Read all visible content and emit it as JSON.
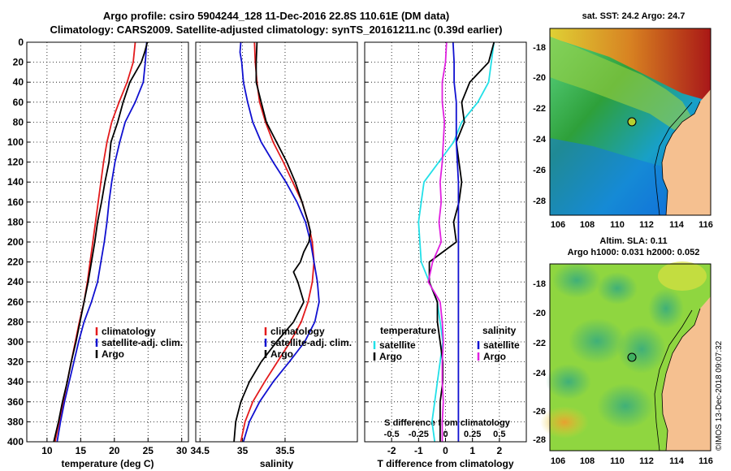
{
  "header": {
    "title_line1": "Argo profile: csiro 5904244_128 11-Dec-2016 22.8S 110.61E (DM data)",
    "title_line2": "Climatology: CARS2009. Satellite-adjusted climatology: synTS_20161211.nc (0.39d earlier)"
  },
  "colors": {
    "red": "#e31a1c",
    "blue": "#1010d0",
    "black": "#000000",
    "cyan": "#22e0e8",
    "magenta": "#e020e0"
  },
  "chart_data": [
    {
      "type": "line",
      "id": "temperature",
      "xlabel": "temperature (deg C)",
      "ylabel": "",
      "xlim": [
        7,
        31
      ],
      "ylim": [
        400,
        0
      ],
      "xticks": [
        10,
        15,
        20,
        25,
        30
      ],
      "yticks": [
        0,
        20,
        40,
        60,
        80,
        100,
        120,
        140,
        160,
        180,
        200,
        220,
        240,
        260,
        280,
        300,
        320,
        340,
        360,
        380,
        400
      ],
      "grid": true,
      "legend": [
        "climatology",
        "satellite-adj. clim.",
        "Argo"
      ],
      "series": [
        {
          "name": "climatology",
          "color": "red",
          "depth": [
            0,
            20,
            40,
            60,
            80,
            100,
            120,
            140,
            160,
            180,
            200,
            220,
            240,
            260,
            280,
            300,
            320,
            340,
            360,
            380,
            400
          ],
          "values": [
            23.1,
            22.8,
            21.9,
            20.7,
            19.6,
            18.9,
            18.4,
            18.0,
            17.6,
            17.2,
            16.8,
            16.4,
            16.0,
            15.5,
            14.8,
            14.2,
            13.6,
            13.0,
            12.4,
            11.8,
            11.2
          ]
        },
        {
          "name": "satellite-adj. clim.",
          "color": "blue",
          "depth": [
            0,
            20,
            40,
            60,
            80,
            100,
            120,
            140,
            160,
            180,
            200,
            220,
            240,
            260,
            280,
            300,
            320,
            340,
            360,
            380,
            400
          ],
          "values": [
            24.8,
            24.6,
            24.3,
            23.1,
            21.6,
            20.8,
            20.1,
            19.6,
            19.2,
            18.9,
            18.5,
            18.0,
            17.5,
            16.6,
            15.5,
            14.7,
            14.0,
            13.3,
            12.6,
            12.0,
            11.5
          ]
        },
        {
          "name": "Argo",
          "color": "black",
          "depth": [
            0,
            10,
            20,
            40,
            60,
            80,
            100,
            120,
            140,
            160,
            180,
            200,
            220,
            240,
            260,
            280,
            300,
            320,
            340,
            360,
            380,
            400
          ],
          "values": [
            24.9,
            24.5,
            24.0,
            22.3,
            21.3,
            20.5,
            19.5,
            19.2,
            18.6,
            18.1,
            17.5,
            17.1,
            16.6,
            16.1,
            15.5,
            14.9,
            14.3,
            13.6,
            13.0,
            12.3,
            11.7,
            11.0
          ]
        }
      ]
    },
    {
      "type": "line",
      "id": "salinity",
      "xlabel": "salinity",
      "ylabel": "",
      "xlim": [
        34.45,
        36.35
      ],
      "ylim": [
        400,
        0
      ],
      "xticks": [
        34.5,
        35,
        35.5
      ],
      "ytick_labels_shown": false,
      "grid": true,
      "legend": [
        "climatology",
        "satellite-adj. clim.",
        "Argo"
      ],
      "series": [
        {
          "name": "climatology",
          "color": "red",
          "depth": [
            0,
            20,
            40,
            60,
            80,
            100,
            120,
            140,
            160,
            180,
            200,
            220,
            240,
            260,
            280,
            300,
            320,
            340,
            360,
            380,
            400
          ],
          "values": [
            35.14,
            35.15,
            35.17,
            35.2,
            35.27,
            35.36,
            35.48,
            35.59,
            35.7,
            35.77,
            35.82,
            35.84,
            35.82,
            35.77,
            35.69,
            35.56,
            35.41,
            35.26,
            35.12,
            35.03,
            34.98
          ]
        },
        {
          "name": "satellite-adj. clim.",
          "color": "blue",
          "depth": [
            0,
            10,
            20,
            40,
            60,
            80,
            100,
            120,
            140,
            160,
            180,
            200,
            220,
            240,
            260,
            280,
            300,
            320,
            340,
            360,
            380,
            400
          ],
          "values": [
            34.98,
            34.97,
            34.99,
            35.01,
            35.06,
            35.12,
            35.22,
            35.36,
            35.51,
            35.64,
            35.74,
            35.8,
            35.84,
            35.88,
            35.9,
            35.85,
            35.73,
            35.55,
            35.36,
            35.2,
            35.08,
            35.01
          ]
        },
        {
          "name": "Argo",
          "color": "black",
          "depth": [
            0,
            20,
            40,
            60,
            80,
            100,
            120,
            140,
            160,
            180,
            190,
            200,
            210,
            220,
            230,
            240,
            260,
            280,
            300,
            320,
            340,
            360,
            380,
            400
          ],
          "values": [
            35.17,
            35.16,
            35.16,
            35.22,
            35.28,
            35.4,
            35.52,
            35.62,
            35.7,
            35.77,
            35.8,
            35.78,
            35.72,
            35.68,
            35.6,
            35.65,
            35.72,
            35.6,
            35.4,
            35.22,
            35.08,
            34.98,
            34.92,
            34.9
          ]
        }
      ]
    },
    {
      "type": "line",
      "id": "difference",
      "xlabel": "T difference from climatology",
      "top_xlabel": "S difference from climatology",
      "ylabel": "",
      "xlim": [
        -3,
        3
      ],
      "top_xlim": [
        -0.75,
        0.75
      ],
      "ylim": [
        400,
        0
      ],
      "xticks": [
        -2,
        -1,
        0,
        1,
        2
      ],
      "top_xticks": [
        -0.5,
        -0.25,
        0,
        0.25,
        0.5
      ],
      "ytick_labels_shown": false,
      "grid": true,
      "legend_left_title": "temperature",
      "legend_right_title": "salinity",
      "legend_left": [
        "satellite",
        "Argo"
      ],
      "legend_right": [
        "satellite",
        "Argo"
      ],
      "series": [
        {
          "name": "temperature satellite",
          "color": "cyan",
          "axis": "T",
          "depth": [
            0,
            20,
            40,
            60,
            80,
            100,
            140,
            180,
            220,
            260,
            300,
            340,
            380,
            400
          ],
          "values": [
            1.8,
            1.7,
            1.6,
            1.2,
            0.6,
            0.3,
            -0.8,
            -1.0,
            -0.9,
            -0.3,
            -0.1,
            -0.3,
            -0.5,
            -0.4
          ]
        },
        {
          "name": "temperature Argo",
          "color": "black",
          "axis": "T",
          "depth": [
            0,
            20,
            40,
            60,
            80,
            100,
            120,
            140,
            160,
            180,
            200,
            220,
            240,
            260,
            280,
            300,
            320,
            340,
            360,
            380,
            400
          ],
          "values": [
            1.8,
            1.6,
            0.9,
            0.6,
            0.7,
            0.4,
            0.5,
            0.6,
            0.5,
            0.3,
            0.4,
            -0.6,
            -0.6,
            -0.3,
            -0.3,
            -0.2,
            -0.1,
            -0.1,
            -0.2,
            -0.2,
            -0.2
          ]
        },
        {
          "name": "salinity satellite",
          "color": "blue",
          "axis": "S",
          "depth": [
            0,
            20,
            40,
            60,
            80,
            100,
            140,
            180,
            220,
            260,
            300,
            340,
            380,
            400
          ],
          "values": [
            0.07,
            0.08,
            0.08,
            0.1,
            0.1,
            0.1,
            0.12,
            0.12,
            0.12,
            0.12,
            0.12,
            0.12,
            0.12,
            0.12
          ]
        },
        {
          "name": "salinity Argo",
          "color": "magenta",
          "axis": "S",
          "depth": [
            0,
            20,
            40,
            60,
            80,
            100,
            120,
            140,
            160,
            180,
            200,
            220,
            240,
            260,
            280,
            300,
            320,
            340,
            360,
            380,
            400
          ],
          "values": [
            0.01,
            0.0,
            -0.03,
            -0.03,
            -0.01,
            -0.02,
            -0.03,
            -0.05,
            -0.04,
            -0.06,
            -0.04,
            -0.12,
            -0.16,
            -0.05,
            -0.03,
            -0.02,
            -0.03,
            -0.03,
            -0.02,
            -0.03,
            -0.03
          ]
        }
      ]
    }
  ],
  "maps": {
    "sst": {
      "title": "sat. SST: 24.2 Argo: 24.7",
      "yticks": [
        "-18",
        "-20",
        "-22",
        "-24",
        "-26",
        "-28"
      ],
      "xticks": [
        "106",
        "108",
        "110",
        "112",
        "114",
        "116"
      ]
    },
    "sla": {
      "title_line1": "Altim. SLA: 0.11",
      "title_line2": "Argo h1000: 0.031 h2000: 0.052",
      "yticks": [
        "-18",
        "-20",
        "-22",
        "-24",
        "-26",
        "-28"
      ],
      "xticks": [
        "106",
        "108",
        "110",
        "112",
        "114",
        "116"
      ]
    }
  },
  "footer": {
    "stamp": "©IMOS 13-Dec-2018 09:07:32"
  }
}
